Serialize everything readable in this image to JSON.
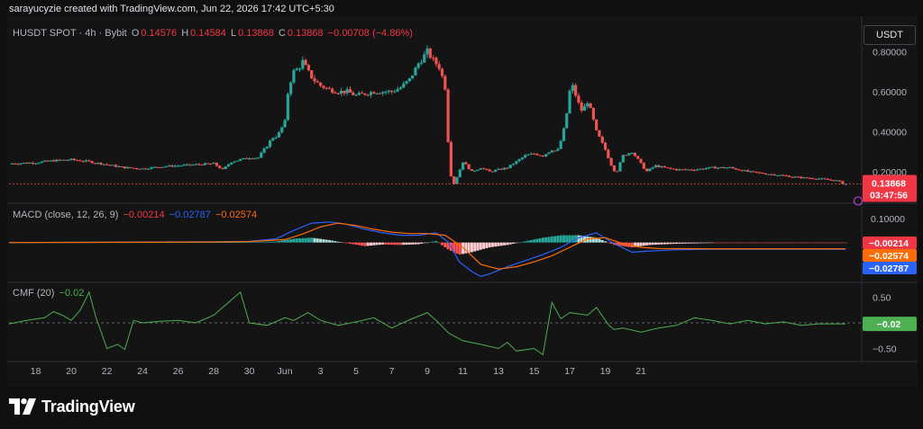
{
  "header": {
    "credit": "sarayucyzie created with TradingView.com, Jun 22, 2026 17:42 UTC+5:30"
  },
  "price_legend": {
    "symbol": "HUSDT SPOT · 4h · Bybit",
    "o_label": "O",
    "o_value": "0.14576",
    "h_label": "H",
    "h_value": "0.14584",
    "l_label": "L",
    "l_value": "0.13868",
    "c_label": "C",
    "c_value": "0.13868",
    "change": "−0.00708 (−4.86%)"
  },
  "macd_legend": {
    "label": "MACD (close, 12, 26, 9)",
    "hist": "−0.00214",
    "macd": "−0.02787",
    "signal": "−0.02574"
  },
  "cmf_legend": {
    "label": "CMF (20)",
    "value": "−0.02"
  },
  "currency_button": "USDT",
  "price_badge": {
    "price": "0.13868",
    "countdown": "03:47:56"
  },
  "macd_badges": {
    "hist": "−0.00214",
    "signal": "−0.02574",
    "macd": "−0.02787"
  },
  "cmf_badge": "−0.02",
  "footer": {
    "brand": "TradingView"
  },
  "colors": {
    "up": "#26a69a",
    "down": "#ef5350",
    "macd": "#2962ff",
    "signal": "#ff6d00",
    "cmf": "#4caf50",
    "hist_pos_strong": "#26a69a",
    "hist_pos_weak": "#b2dfdb",
    "hist_neg_strong": "#ff5252",
    "hist_neg_weak": "#ffcdd2"
  },
  "chart_data": [
    {
      "type": "candlestick",
      "title": "HUSDT SPOT · 4h · Bybit",
      "y_axis_ticks": [
        "0.80000",
        "0.60000",
        "0.40000",
        "0.20000"
      ],
      "y_ticks_values": [
        0.8,
        0.6,
        0.4,
        0.2
      ],
      "ylim": [
        0.06,
        0.86
      ],
      "x_axis_ticks": [
        "18",
        "20",
        "22",
        "24",
        "26",
        "28",
        "30",
        "Jun",
        "3",
        "5",
        "7",
        "9",
        "11",
        "13",
        "15",
        "17",
        "19",
        "21"
      ],
      "x_tick_days": [
        0,
        2,
        4,
        6,
        8,
        10,
        12,
        14,
        16,
        18,
        20,
        22,
        24,
        26,
        28,
        30,
        32,
        34
      ],
      "x_start_day": -1.5,
      "x_end_day": 35.8,
      "close_series": [
        [
          -1.5,
          0.24
        ],
        [
          0,
          0.245
        ],
        [
          1,
          0.255
        ],
        [
          2,
          0.26
        ],
        [
          3,
          0.25
        ],
        [
          4,
          0.235
        ],
        [
          5,
          0.22
        ],
        [
          6,
          0.215
        ],
        [
          7,
          0.225
        ],
        [
          8,
          0.23
        ],
        [
          9,
          0.235
        ],
        [
          10,
          0.24
        ],
        [
          10.5,
          0.21
        ],
        [
          11,
          0.25
        ],
        [
          12,
          0.27
        ],
        [
          12.5,
          0.27
        ],
        [
          13,
          0.33
        ],
        [
          13.3,
          0.37
        ],
        [
          13.6,
          0.38
        ],
        [
          14,
          0.45
        ],
        [
          14.2,
          0.62
        ],
        [
          14.5,
          0.7
        ],
        [
          14.8,
          0.72
        ],
        [
          15,
          0.75
        ],
        [
          15.3,
          0.7
        ],
        [
          15.6,
          0.66
        ],
        [
          16,
          0.63
        ],
        [
          16.5,
          0.61
        ],
        [
          17,
          0.6
        ],
        [
          17.5,
          0.6
        ],
        [
          18,
          0.58
        ],
        [
          18.5,
          0.59
        ],
        [
          19,
          0.6
        ],
        [
          19.5,
          0.6
        ],
        [
          20,
          0.6
        ],
        [
          20.5,
          0.62
        ],
        [
          21,
          0.66
        ],
        [
          21.5,
          0.74
        ],
        [
          22,
          0.8
        ],
        [
          22.3,
          0.76
        ],
        [
          22.7,
          0.72
        ],
        [
          23.0,
          0.62
        ],
        [
          23.2,
          0.3
        ],
        [
          23.4,
          0.12
        ],
        [
          23.7,
          0.18
        ],
        [
          24,
          0.25
        ],
        [
          24.5,
          0.2
        ],
        [
          25,
          0.22
        ],
        [
          25.5,
          0.2
        ],
        [
          26,
          0.21
        ],
        [
          26.5,
          0.22
        ],
        [
          27,
          0.25
        ],
        [
          27.5,
          0.28
        ],
        [
          28,
          0.29
        ],
        [
          28.5,
          0.28
        ],
        [
          29,
          0.31
        ],
        [
          29.3,
          0.3
        ],
        [
          29.6,
          0.38
        ],
        [
          29.8,
          0.47
        ],
        [
          30,
          0.6
        ],
        [
          30.2,
          0.63
        ],
        [
          30.4,
          0.56
        ],
        [
          30.7,
          0.5
        ],
        [
          31,
          0.55
        ],
        [
          31.2,
          0.5
        ],
        [
          31.5,
          0.4
        ],
        [
          32,
          0.31
        ],
        [
          32.3,
          0.24
        ],
        [
          32.6,
          0.19
        ],
        [
          33,
          0.28
        ],
        [
          33.5,
          0.3
        ],
        [
          34,
          0.24
        ],
        [
          34.3,
          0.2
        ],
        [
          34.8,
          0.23
        ],
        [
          35.3,
          0.22
        ],
        [
          36,
          0.21
        ],
        [
          37,
          0.21
        ],
        [
          38,
          0.22
        ],
        [
          39,
          0.22
        ],
        [
          40,
          0.2
        ],
        [
          41,
          0.19
        ],
        [
          42,
          0.18
        ],
        [
          43,
          0.17
        ],
        [
          44,
          0.165
        ],
        [
          45,
          0.155
        ],
        [
          45.5,
          0.139
        ]
      ],
      "last_price": 0.13868
    },
    {
      "type": "line",
      "title": "MACD (close, 12, 26, 9)",
      "y_axis_ticks": [
        "0.10000"
      ],
      "y_ticks_values": [
        0.1
      ],
      "ylim": [
        -0.15,
        0.14
      ],
      "series": [
        {
          "name": "MACD",
          "values": [
            [
              -1.5,
              0.0
            ],
            [
              10,
              0.003
            ],
            [
              12,
              0.005
            ],
            [
              13.5,
              0.015
            ],
            [
              14.5,
              0.05
            ],
            [
              15.5,
              0.08
            ],
            [
              16.5,
              0.085
            ],
            [
              17.5,
              0.075
            ],
            [
              18.5,
              0.055
            ],
            [
              19.5,
              0.04
            ],
            [
              20.5,
              0.03
            ],
            [
              21.5,
              0.03
            ],
            [
              22.5,
              0.04
            ],
            [
              23.2,
              0.0
            ],
            [
              23.8,
              -0.08
            ],
            [
              24.5,
              -0.12
            ],
            [
              25,
              -0.14
            ],
            [
              25.5,
              -0.13
            ],
            [
              26.5,
              -0.1
            ],
            [
              27.5,
              -0.075
            ],
            [
              28.5,
              -0.05
            ],
            [
              29.5,
              -0.02
            ],
            [
              30.5,
              0.02
            ],
            [
              31.5,
              0.04
            ],
            [
              32.5,
              -0.005
            ],
            [
              33.5,
              -0.04
            ],
            [
              34.5,
              -0.035
            ],
            [
              36,
              -0.03
            ],
            [
              38,
              -0.028
            ],
            [
              45.5,
              -0.0279
            ]
          ]
        },
        {
          "name": "Signal",
          "values": [
            [
              -1.5,
              0.0
            ],
            [
              10,
              0.002
            ],
            [
              12,
              0.004
            ],
            [
              14,
              0.012
            ],
            [
              15,
              0.035
            ],
            [
              16,
              0.065
            ],
            [
              17,
              0.08
            ],
            [
              18,
              0.07
            ],
            [
              19,
              0.055
            ],
            [
              20,
              0.043
            ],
            [
              21,
              0.037
            ],
            [
              22,
              0.037
            ],
            [
              23,
              0.03
            ],
            [
              24,
              -0.02
            ],
            [
              25,
              -0.09
            ],
            [
              26,
              -0.11
            ],
            [
              27,
              -0.1
            ],
            [
              28,
              -0.08
            ],
            [
              29,
              -0.055
            ],
            [
              30,
              -0.02
            ],
            [
              31,
              0.015
            ],
            [
              32,
              0.02
            ],
            [
              33,
              -0.005
            ],
            [
              34,
              -0.02
            ],
            [
              35,
              -0.025
            ],
            [
              38,
              -0.026
            ],
            [
              45.5,
              -0.0257
            ]
          ]
        }
      ],
      "histogram": [
        [
          -1.5,
          0.0
        ],
        [
          10,
          0.001
        ],
        [
          12,
          0.001
        ],
        [
          13.5,
          0.004
        ],
        [
          14.5,
          0.016
        ],
        [
          15.5,
          0.02
        ],
        [
          16.5,
          0.01
        ],
        [
          17.5,
          -0.003
        ],
        [
          18.5,
          -0.015
        ],
        [
          19.5,
          -0.008
        ],
        [
          20.5,
          -0.01
        ],
        [
          21.5,
          -0.007
        ],
        [
          22.5,
          0.006
        ],
        [
          23.2,
          -0.03
        ],
        [
          23.8,
          -0.05
        ],
        [
          24.5,
          -0.04
        ],
        [
          25,
          -0.03
        ],
        [
          25.5,
          -0.02
        ],
        [
          26.5,
          -0.01
        ],
        [
          27.5,
          0.005
        ],
        [
          28.5,
          0.02
        ],
        [
          29.5,
          0.03
        ],
        [
          30.5,
          0.03
        ],
        [
          31.5,
          0.02
        ],
        [
          32.5,
          -0.01
        ],
        [
          33.5,
          -0.02
        ],
        [
          34.5,
          -0.01
        ],
        [
          36,
          -0.005
        ],
        [
          38,
          -0.002
        ],
        [
          45.5,
          -0.00214
        ]
      ]
    },
    {
      "type": "line",
      "title": "CMF (20)",
      "y_axis_ticks": [
        "0.50",
        "−0.50"
      ],
      "y_ticks_values": [
        0.5,
        -0.5
      ],
      "ylim": [
        -0.72,
        0.72
      ],
      "series": [
        {
          "name": "CMF",
          "values": [
            [
              -1.5,
              -0.02
            ],
            [
              -0.5,
              0.05
            ],
            [
              0.5,
              0.1
            ],
            [
              1.0,
              0.22
            ],
            [
              1.5,
              0.15
            ],
            [
              2,
              0.05
            ],
            [
              2.5,
              0.25
            ],
            [
              3,
              0.6
            ],
            [
              3.4,
              0.08
            ],
            [
              3.6,
              -0.1
            ],
            [
              4,
              -0.5
            ],
            [
              4.6,
              -0.42
            ],
            [
              5,
              -0.52
            ],
            [
              5.5,
              0.05
            ],
            [
              6,
              0.0
            ],
            [
              7,
              0.03
            ],
            [
              8,
              0.05
            ],
            [
              9,
              0.0
            ],
            [
              10,
              0.15
            ],
            [
              11.5,
              0.6
            ],
            [
              12,
              0.0
            ],
            [
              13,
              -0.05
            ],
            [
              14,
              0.1
            ],
            [
              14.5,
              0.05
            ],
            [
              15.3,
              0.2
            ],
            [
              16,
              0.05
            ],
            [
              17,
              -0.05
            ],
            [
              18,
              0.02
            ],
            [
              19,
              0.1
            ],
            [
              20,
              -0.1
            ],
            [
              21,
              0.06
            ],
            [
              22,
              0.2
            ],
            [
              22.5,
              0.05
            ],
            [
              23.2,
              -0.2
            ],
            [
              24,
              -0.35
            ],
            [
              25,
              -0.42
            ],
            [
              26,
              -0.5
            ],
            [
              26.5,
              -0.38
            ],
            [
              27,
              -0.55
            ],
            [
              28,
              -0.5
            ],
            [
              28.5,
              -0.62
            ],
            [
              29,
              0.4
            ],
            [
              29.5,
              0.08
            ],
            [
              30,
              0.2
            ],
            [
              31,
              0.15
            ],
            [
              31.5,
              0.3
            ],
            [
              32.2,
              -0.05
            ],
            [
              32.5,
              -0.13
            ],
            [
              33,
              -0.1
            ],
            [
              34,
              -0.18
            ],
            [
              35,
              -0.1
            ],
            [
              36,
              -0.05
            ],
            [
              37,
              0.1
            ],
            [
              38,
              0.05
            ],
            [
              39,
              -0.02
            ],
            [
              40,
              0.05
            ],
            [
              41,
              -0.02
            ],
            [
              42,
              0.02
            ],
            [
              43,
              -0.05
            ],
            [
              44,
              -0.02
            ],
            [
              45.5,
              -0.02
            ]
          ]
        }
      ]
    }
  ]
}
